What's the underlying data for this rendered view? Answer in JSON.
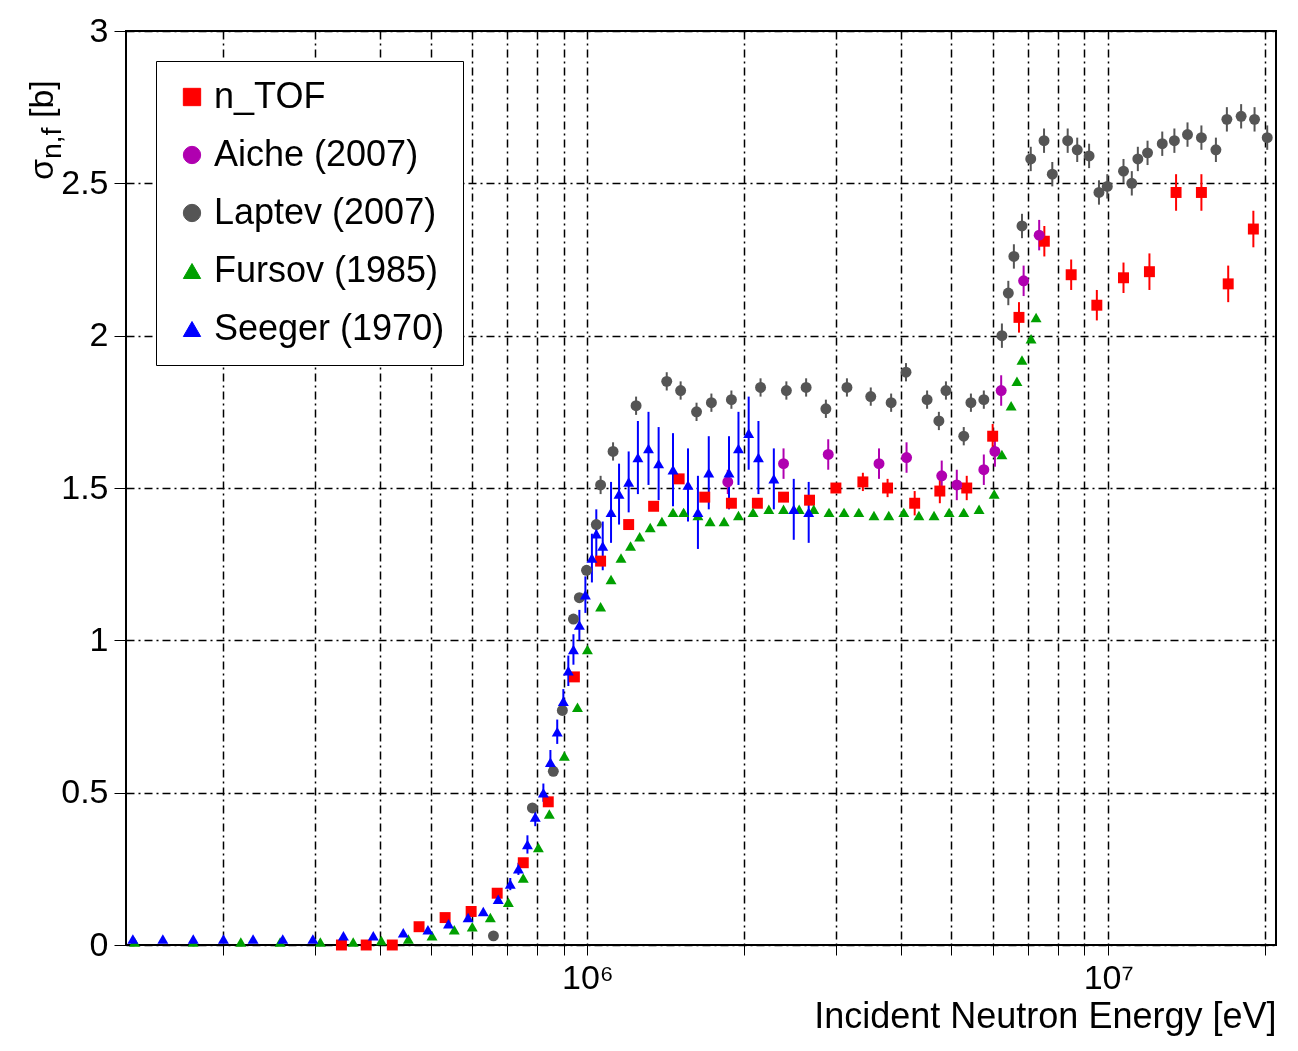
{
  "chart_data": {
    "type": "scatter",
    "xlabel": "Incident Neutron Energy [eV]",
    "ylabel": "σ$_{n,f}$ [b]",
    "log": "x",
    "grid": true,
    "legend": "top left",
    "xlim": [
      130000,
      21000000
    ],
    "ylim": [
      0,
      3
    ],
    "xticks": [
      {
        "value": 200000,
        "label": null
      },
      {
        "value": 300000,
        "label": null
      },
      {
        "value": 400000,
        "label": null
      },
      {
        "value": 500000,
        "label": null
      },
      {
        "value": 600000,
        "label": null
      },
      {
        "value": 700000,
        "label": null
      },
      {
        "value": 800000,
        "label": null
      },
      {
        "value": 900000,
        "label": null
      },
      {
        "value": 1000000,
        "label": "10⁶"
      },
      {
        "value": 2000000,
        "label": null
      },
      {
        "value": 3000000,
        "label": null
      },
      {
        "value": 4000000,
        "label": null
      },
      {
        "value": 5000000,
        "label": null
      },
      {
        "value": 6000000,
        "label": null
      },
      {
        "value": 7000000,
        "label": null
      },
      {
        "value": 8000000,
        "label": null
      },
      {
        "value": 9000000,
        "label": null
      },
      {
        "value": 10000000,
        "label": "10⁷"
      },
      {
        "value": 20000000,
        "label": null
      }
    ],
    "yticks": [
      0,
      0.5,
      1,
      1.5,
      2,
      2.5,
      3
    ],
    "series": [
      {
        "name": "n_TOF",
        "color": "#ff0000",
        "marker": "square",
        "x": [
          337000,
          376000,
          422000,
          475000,
          533000,
          598000,
          671000,
          753000,
          841000,
          944000,
          1060000,
          1200000,
          1340000,
          1500000,
          1680000,
          1890000,
          2120000,
          2380000,
          2670000,
          3000000,
          3380000,
          3770000,
          4250000,
          4750000,
          5350000,
          6000000,
          6740000,
          7540000,
          8490000,
          9510000,
          10700000,
          12000000,
          13500000,
          15100000,
          17000000,
          19000000
        ],
        "values": [
          0,
          0,
          0,
          0.06,
          0.09,
          0.11,
          0.17,
          0.27,
          0.47,
          0.88,
          1.26,
          1.38,
          1.44,
          1.53,
          1.47,
          1.45,
          1.45,
          1.47,
          1.46,
          1.5,
          1.52,
          1.5,
          1.45,
          1.49,
          1.5,
          1.67,
          2.06,
          2.31,
          2.2,
          2.1,
          2.19,
          2.21,
          2.47,
          2.47,
          2.17,
          2.35
        ],
        "errors": [
          null,
          null,
          null,
          null,
          null,
          null,
          null,
          null,
          null,
          null,
          null,
          null,
          null,
          null,
          null,
          null,
          null,
          null,
          null,
          null,
          0.03,
          0.03,
          0.04,
          0.04,
          0.04,
          0.04,
          0.05,
          0.05,
          0.05,
          0.05,
          0.05,
          0.06,
          0.06,
          0.06,
          0.06,
          0.06
        ]
      },
      {
        "name": "Aiche (2007)",
        "color": "#b000b0",
        "marker": "circle",
        "x": [
          1860000,
          2380000,
          2900000,
          3630000,
          4100000,
          4790000,
          5120000,
          5770000,
          6060000,
          6230000,
          6880000,
          7370000
        ],
        "values": [
          1.52,
          1.58,
          1.61,
          1.58,
          1.6,
          1.54,
          1.51,
          1.56,
          1.62,
          1.82,
          2.18,
          2.33
        ],
        "errors": [
          0.04,
          0.05,
          0.05,
          0.05,
          0.05,
          0.05,
          0.05,
          0.05,
          0.05,
          0.05,
          0.05,
          0.05
        ]
      },
      {
        "name": "Laptev (2007)",
        "color": "#555555",
        "marker": "circle",
        "x": [
          660000,
          784000,
          860000,
          895000,
          940000,
          965000,
          996000,
          1040000,
          1060000,
          1120000,
          1240000,
          1420000,
          1510000,
          1620000,
          1730000,
          1890000,
          2150000,
          2410000,
          2630000,
          2870000,
          3150000,
          3500000,
          3830000,
          4090000,
          4490000,
          4730000,
          4880000,
          5280000,
          5450000,
          5770000,
          6250000,
          6430000,
          6590000,
          6830000,
          7100000,
          7530000,
          7810000,
          8360000,
          8720000,
          9190000,
          9600000,
          9960000,
          10700000,
          11100000,
          11400000,
          11900000,
          12700000,
          13400000,
          14200000,
          15100000,
          16100000,
          16900000,
          18000000,
          19100000,
          20200000
        ],
        "values": [
          0.03,
          0.45,
          0.57,
          0.77,
          1.07,
          1.14,
          1.23,
          1.38,
          1.51,
          1.62,
          1.77,
          1.85,
          1.82,
          1.75,
          1.78,
          1.79,
          1.83,
          1.82,
          1.83,
          1.76,
          1.83,
          1.8,
          1.78,
          1.88,
          1.79,
          1.72,
          1.82,
          1.67,
          1.78,
          1.79,
          2,
          2.14,
          2.26,
          2.36,
          2.58,
          2.64,
          2.53,
          2.64,
          2.61,
          2.59,
          2.47,
          2.49,
          2.54,
          2.5,
          2.58,
          2.6,
          2.63,
          2.64,
          2.66,
          2.65,
          2.61,
          2.71,
          2.72,
          2.71,
          2.65
        ],
        "errors": [
          null,
          null,
          null,
          null,
          null,
          null,
          null,
          null,
          0.03,
          0.03,
          0.03,
          0.03,
          0.03,
          0.03,
          0.03,
          0.03,
          0.03,
          0.03,
          0.03,
          0.03,
          0.03,
          0.03,
          0.03,
          0.03,
          0.03,
          0.03,
          0.03,
          0.03,
          0.03,
          0.03,
          0.04,
          0.04,
          0.04,
          0.04,
          0.04,
          0.04,
          0.04,
          0.04,
          0.04,
          0.04,
          0.04,
          0.04,
          0.04,
          0.04,
          0.04,
          0.04,
          0.04,
          0.04,
          0.04,
          0.04,
          0.04,
          0.04,
          0.04,
          0.04,
          0.04
        ]
      },
      {
        "name": "Fursov (1985)",
        "color": "#00a000",
        "marker": "triangle",
        "x": [
          135000,
          175000,
          216000,
          257000,
          307000,
          355000,
          402000,
          453000,
          503000,
          555000,
          601000,
          651000,
          705000,
          753000,
          805000,
          845000,
          903000,
          957000,
          1000000,
          1060000,
          1110000,
          1160000,
          1210000,
          1260000,
          1320000,
          1390000,
          1460000,
          1530000,
          1630000,
          1720000,
          1830000,
          1950000,
          2080000,
          2230000,
          2380000,
          2550000,
          2720000,
          2910000,
          3110000,
          3320000,
          3550000,
          3790000,
          4050000,
          4330000,
          4630000,
          4950000,
          5280000,
          5650000,
          6040000,
          6250000,
          6510000,
          6680000,
          6830000,
          7110000,
          7270000
        ],
        "values": [
          0.01,
          0.01,
          0.01,
          0.01,
          0.01,
          0.01,
          0.015,
          0.02,
          0.03,
          0.05,
          0.06,
          0.09,
          0.14,
          0.22,
          0.32,
          0.43,
          0.62,
          0.78,
          0.97,
          1.11,
          1.2,
          1.27,
          1.31,
          1.34,
          1.37,
          1.39,
          1.42,
          1.42,
          1.41,
          1.39,
          1.39,
          1.41,
          1.42,
          1.43,
          1.43,
          1.43,
          1.43,
          1.42,
          1.42,
          1.42,
          1.41,
          1.41,
          1.42,
          1.41,
          1.41,
          1.42,
          1.42,
          1.43,
          1.48,
          1.61,
          1.77,
          1.85,
          1.92,
          1.99,
          2.06
        ]
      },
      {
        "name": "Seeger (1970)",
        "color": "#0000ff",
        "marker": "triangle",
        "x": [
          134000,
          153000,
          175000,
          200000,
          228000,
          260000,
          297000,
          340000,
          388000,
          443000,
          494000,
          541000,
          590000,
          631000,
          674000,
          711000,
          737000,
          767000,
          794000,
          823000,
          849000,
          875000,
          899000,
          919000,
          940000,
          965000,
          991000,
          1020000,
          1040000,
          1070000,
          1110000,
          1150000,
          1200000,
          1250000,
          1310000,
          1370000,
          1460000,
          1560000,
          1630000,
          1710000,
          1870000,
          1950000,
          2040000,
          2130000,
          2280000,
          2490000,
          2660000
        ],
        "values": [
          0.02,
          0.02,
          0.02,
          0.02,
          0.02,
          0.02,
          0.02,
          0.03,
          0.03,
          0.04,
          0.05,
          0.07,
          0.09,
          0.11,
          0.15,
          0.2,
          0.25,
          0.33,
          0.42,
          0.5,
          0.6,
          0.7,
          0.8,
          0.9,
          0.97,
          1.05,
          1.15,
          1.27,
          1.35,
          1.31,
          1.42,
          1.48,
          1.52,
          1.6,
          1.63,
          1.58,
          1.56,
          1.51,
          1.42,
          1.55,
          1.55,
          1.63,
          1.68,
          1.6,
          1.53,
          1.43,
          1.42
        ],
        "errors": [
          null,
          null,
          null,
          null,
          null,
          null,
          null,
          null,
          null,
          null,
          null,
          null,
          null,
          null,
          null,
          0.02,
          0.02,
          0.03,
          0.03,
          0.03,
          0.04,
          0.04,
          0.04,
          0.05,
          0.05,
          0.05,
          0.06,
          0.08,
          0.08,
          0.08,
          0.1,
          0.1,
          0.1,
          0.12,
          0.12,
          0.12,
          0.12,
          0.12,
          0.12,
          0.12,
          0.12,
          0.12,
          0.12,
          0.12,
          0.1,
          0.1,
          0.1
        ]
      }
    ]
  }
}
